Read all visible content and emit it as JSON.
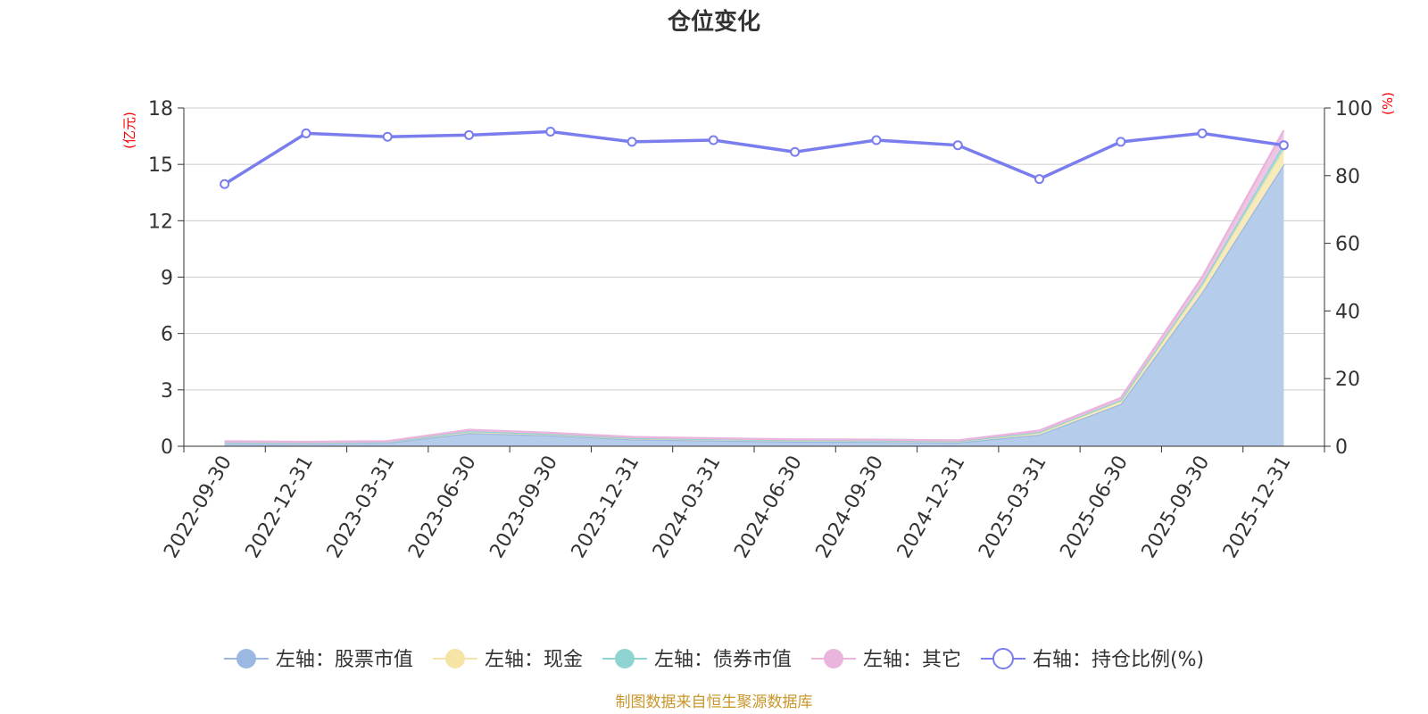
{
  "chart_data": {
    "type": "area",
    "title": "仓位变化",
    "left_axis_unit": "(亿元)",
    "right_axis_unit": "(%)",
    "categories": [
      "2022-09-30",
      "2022-12-31",
      "2023-03-31",
      "2023-06-30",
      "2023-09-30",
      "2023-12-31",
      "2024-03-31",
      "2024-06-30",
      "2024-09-30",
      "2024-12-31",
      "2025-03-31",
      "2025-06-30",
      "2025-09-30",
      "2025-12-31"
    ],
    "left_ylim": [
      0,
      18
    ],
    "left_ticks": [
      0,
      3,
      6,
      9,
      12,
      15,
      18
    ],
    "right_ylim": [
      0,
      100
    ],
    "right_ticks": [
      0,
      20,
      40,
      60,
      80,
      100
    ],
    "series": [
      {
        "name": "左轴：股票市值",
        "axis": "left",
        "stack": true,
        "color": "#9bb8e2",
        "fill": "#b6cceb",
        "values": [
          0.18,
          0.16,
          0.19,
          0.7,
          0.58,
          0.37,
          0.31,
          0.25,
          0.24,
          0.2,
          0.62,
          2.25,
          8.2,
          15.0
        ]
      },
      {
        "name": "左轴：现金",
        "axis": "left",
        "stack": true,
        "color": "#f5e4a5",
        "fill": "#f8ebbb",
        "values": [
          0.04,
          0.03,
          0.04,
          0.08,
          0.06,
          0.05,
          0.05,
          0.05,
          0.05,
          0.05,
          0.1,
          0.15,
          0.35,
          0.8
        ]
      },
      {
        "name": "左轴：债券市值",
        "axis": "left",
        "stack": true,
        "color": "#8fd3d3",
        "fill": "#a8dcdc",
        "values": [
          0.01,
          0.01,
          0.01,
          0.02,
          0.02,
          0.02,
          0.02,
          0.02,
          0.02,
          0.02,
          0.03,
          0.05,
          0.15,
          0.3
        ]
      },
      {
        "name": "左轴：其它",
        "axis": "left",
        "stack": true,
        "color": "#e9b5dc",
        "fill": "#efc5e4",
        "values": [
          0.03,
          0.03,
          0.03,
          0.07,
          0.05,
          0.05,
          0.04,
          0.04,
          0.04,
          0.04,
          0.08,
          0.12,
          0.3,
          0.7
        ]
      },
      {
        "name": "右轴：持仓比例(%)",
        "axis": "right",
        "type": "line",
        "color": "#7a7ded",
        "values": [
          77.5,
          92.5,
          91.5,
          92.0,
          93.0,
          90.0,
          90.5,
          87.0,
          90.5,
          89.0,
          79.0,
          90.0,
          92.5,
          89.0
        ]
      }
    ]
  },
  "source_note": "制图数据来自恒生聚源数据库"
}
